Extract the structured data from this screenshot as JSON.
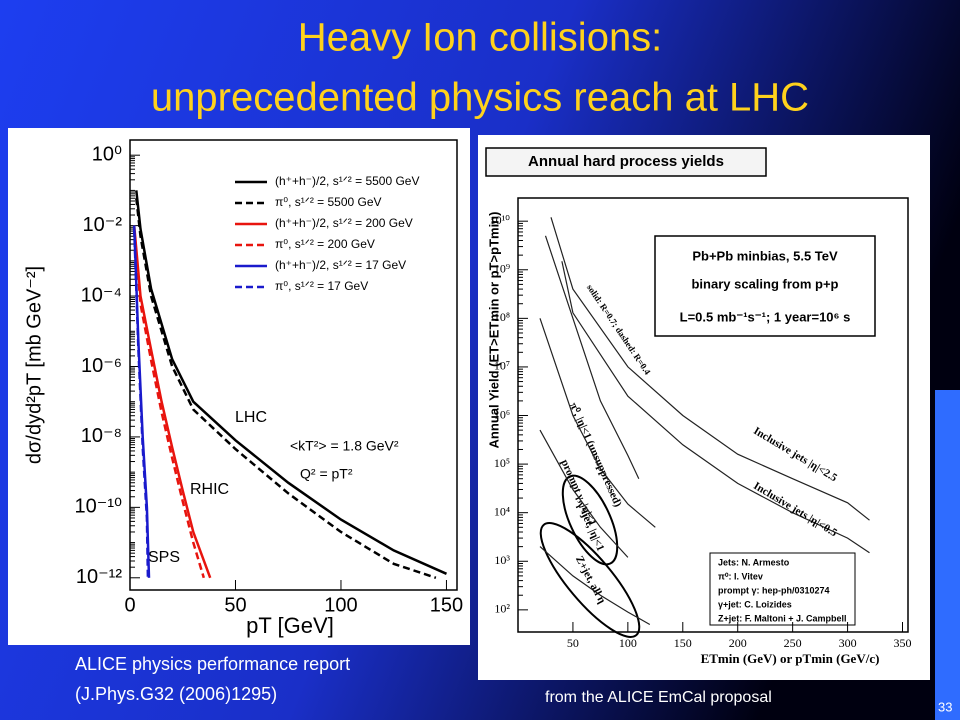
{
  "slide": {
    "title": [
      "Heavy Ion collisions:",
      "unprecedented physics reach at LHC"
    ],
    "captions": [
      "ALICE physics performance report",
      "(J.Phys.G32 (2006)1295)",
      "from the ALICE EmCal proposal"
    ],
    "page_number": "33"
  },
  "chart_data": [
    {
      "type": "line",
      "ylog": true,
      "xlabel": "pT [GeV]",
      "ylabel": "dσ/dyd²pT [mb GeV⁻²]",
      "xlim": [
        0,
        155
      ],
      "ylim": [
        4.5e-13,
        2.7
      ],
      "xticks": [
        0,
        50,
        100,
        150
      ],
      "yticks": [
        {
          "value": 1e-12,
          "label": "10⁻¹²"
        },
        {
          "value": 1e-10,
          "label": "10⁻¹⁰"
        },
        {
          "value": 1e-08,
          "label": "10⁻⁸"
        },
        {
          "value": 1e-06,
          "label": "10⁻⁶"
        },
        {
          "value": 0.0001,
          "label": "10⁻⁴"
        },
        {
          "value": 0.01,
          "label": "10⁻²"
        },
        {
          "value": 1,
          "label": "10⁰"
        }
      ],
      "annotations": [
        "LHC",
        "<kT²> = 1.8 GeV²",
        "Q² = pT²",
        "RHIC",
        "SPS"
      ],
      "series": [
        {
          "name": "(h⁺+h⁻)/2, s¹ᐟ² = 5500 GeV",
          "color": "#000000",
          "dash": false,
          "x": [
            3,
            5,
            10,
            20,
            30,
            50,
            75,
            100,
            125,
            150
          ],
          "values": [
            0.1,
            0.008,
            0.00016,
            1.6e-06,
            1e-07,
            8e-09,
            5e-10,
            4.5e-11,
            6e-12,
            1.3e-12
          ]
        },
        {
          "name": "π⁰, s¹ᐟ² = 5500 GeV",
          "color": "#000000",
          "dash": true,
          "x": [
            3,
            5,
            10,
            20,
            30,
            50,
            75,
            100,
            125,
            145
          ],
          "values": [
            0.06,
            0.005,
            0.0001,
            1e-06,
            6e-08,
            4.5e-09,
            2.5e-10,
            2e-11,
            2.5e-12,
            1e-12
          ]
        },
        {
          "name": "(h⁺+h⁻)/2, s¹ᐟ² = 200 GeV",
          "color": "#e8140e",
          "dash": false,
          "x": [
            2,
            5,
            10,
            15,
            20,
            25,
            30,
            38
          ],
          "values": [
            0.01,
            0.0001,
            3e-06,
            1e-07,
            5e-09,
            3e-10,
            2e-11,
            1e-12
          ]
        },
        {
          "name": "π⁰, s¹ᐟ² = 200 GeV",
          "color": "#e8140e",
          "dash": true,
          "x": [
            2,
            5,
            10,
            15,
            20,
            25,
            30,
            35
          ],
          "values": [
            0.008,
            6e-05,
            1.5e-06,
            5e-08,
            2.5e-09,
            1.5e-10,
            1e-11,
            1e-12
          ]
        },
        {
          "name": "(h⁺+h⁻)/2, s¹ᐟ² = 17 GeV",
          "color": "#1a1acc",
          "dash": false,
          "x": [
            2,
            4,
            6,
            8,
            9
          ],
          "values": [
            0.01,
            5e-06,
            1e-08,
            1e-10,
            1e-12
          ]
        },
        {
          "name": "π⁰, s¹ᐟ² = 17 GeV",
          "color": "#1a1acc",
          "dash": true,
          "x": [
            2,
            4,
            6,
            8,
            8.5
          ],
          "values": [
            0.008,
            3e-06,
            5e-09,
            5e-11,
            1e-12
          ]
        }
      ]
    },
    {
      "type": "line",
      "ylog": true,
      "title": "Annual hard process yields",
      "xlabel": "ETmin (GeV)  or  pTmin (GeV/c)",
      "ylabel": "Annual Yield (ET>ETmin or pT>pTmin)",
      "xlim": [
        0,
        355
      ],
      "ylim": [
        35,
        30000000000.0
      ],
      "xticks": [
        50,
        100,
        150,
        200,
        250,
        300,
        350
      ],
      "yticks": [
        {
          "value": 100,
          "label": "10²"
        },
        {
          "value": 1000,
          "label": "10³"
        },
        {
          "value": 10000,
          "label": "10⁴"
        },
        {
          "value": 100000,
          "label": "10⁵"
        },
        {
          "value": 1000000,
          "label": "10⁶"
        },
        {
          "value": 10000000,
          "label": "10⁷"
        },
        {
          "value": 100000000,
          "label": "10⁸"
        },
        {
          "value": 1000000000,
          "label": "10⁹"
        },
        {
          "value": 10000000000,
          "label": "10¹⁰"
        }
      ],
      "annotations": [
        "Pb+Pb minbias, 5.5 TeV",
        "binary scaling from p+p",
        "L=0.5 mb⁻¹s⁻¹; 1 year=10⁶ s",
        "solid: R=0.7; dashed: R=0.4"
      ],
      "credits": [
        "Jets: N. Armesto",
        "π⁰: I. Vitev",
        "prompt γ: hep-ph/0310274",
        "γ+jet: C. Loizides",
        "Z+jet: F. Maltoni + J. Campbell"
      ],
      "series": [
        {
          "name": "Inclusive jets |η|<2.5",
          "color": "#222222",
          "dash": false,
          "x": [
            30,
            50,
            100,
            150,
            200,
            250,
            300,
            320
          ],
          "values": [
            12000000000,
            400000000,
            10000000,
            1000000,
            160000,
            50000,
            16000,
            7000
          ]
        },
        {
          "name": "Inclusive jets |η|<0.5",
          "color": "#222222",
          "dash": false,
          "x": [
            40,
            50,
            100,
            150,
            200,
            250,
            300,
            320
          ],
          "values": [
            1500000000,
            130000000,
            2500000,
            250000,
            40000,
            10000,
            3000,
            1500
          ]
        },
        {
          "name": "π⁰, |η|<1 (unsuppressed)",
          "color": "#222222",
          "dash": false,
          "x": [
            25,
            50,
            75,
            100,
            110
          ],
          "values": [
            5000000000,
            100000000,
            2000000,
            150000,
            50000
          ]
        },
        {
          "name": "prompt γ, |η|<1",
          "color": "#222222",
          "dash": false,
          "x": [
            20,
            50,
            75,
            100,
            125
          ],
          "values": [
            100000000,
            1000000,
            80000,
            15000,
            5000
          ]
        },
        {
          "name": "γ+jet, |η|<1",
          "color": "#222222",
          "dash": false,
          "x": [
            20,
            50,
            75,
            100
          ],
          "values": [
            500000,
            30000,
            5000,
            1200
          ]
        },
        {
          "name": "Z+jet, all η",
          "color": "#222222",
          "dash": false,
          "x": [
            20,
            50,
            75,
            100,
            120
          ],
          "values": [
            2000,
            500,
            200,
            90,
            50
          ]
        }
      ]
    }
  ]
}
